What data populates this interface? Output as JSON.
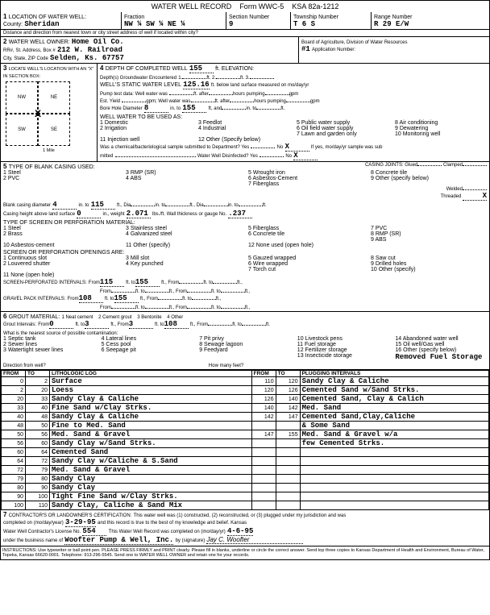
{
  "header": {
    "title": "WATER WELL RECORD",
    "form": "Form WWC-5",
    "ksa": "KSA 82a-1212"
  },
  "section1": {
    "title": "LOCATION OF WATER WELL:",
    "county_label": "County:",
    "county": "Sheridan",
    "fraction_label": "Fraction",
    "fraction": "NW ¼ SW ¼ NE ¼",
    "section_label": "Section Number",
    "section": "9",
    "township_label": "Township Number",
    "township": "T 6 S",
    "range_label": "Range Number",
    "range": "R 29 E/W",
    "distance": "Distance and direction from nearest town or city street address of well if located within city?"
  },
  "section2": {
    "title": "WATER WELL OWNER:",
    "name": "Home Oil Co.",
    "addr_label": "RR#, St. Address, Box #",
    "addr": "212 W. Railroad",
    "city_label": "City, State, ZIP Code",
    "city": "Selden, Ks. 67757",
    "board": "Board of Agriculture, Division of Water Resources",
    "app_num": "#1",
    "app_label": "Application Number:"
  },
  "section3": {
    "title": "LOCATE WELL'S LOCATION WITH AN \"X\" IN SECTION BOX:",
    "nw": "NW",
    "ne": "NE",
    "sw": "SW",
    "se": "SE",
    "mile": "1 Mile"
  },
  "section4": {
    "title": "DEPTH OF COMPLETED WELL",
    "depth": "155",
    "elev_label": "ft. ELEVATION:",
    "depths_label": "Depth(s) Groundwater Encountered",
    "static_label": "WELL'S STATIC WATER LEVEL",
    "static": "125.16",
    "static_suffix": "ft. below land surface measured on mo/day/yr",
    "pump_label": "Pump test data: Well water was",
    "est_label": "Est. Yield",
    "bore_label": "Bore Hole Diameter",
    "bore_dia": "8",
    "bore_to": "155",
    "use_label": "WELL WATER TO BE USED AS:",
    "uses": [
      "1 Domestic",
      "2 Irrigation",
      "3 Feedlot",
      "4 Industrial",
      "5 Public water supply",
      "6 Oil field water supply",
      "7 Lawn and garden only",
      "8 Air conditioning",
      "9 Dewatering",
      "10 Monitoring well",
      "11 Injection well",
      "12 Other (Specify below)"
    ],
    "chem_label": "Was a chemical/bacteriological sample submitted to Department? Yes",
    "chem_no": "No",
    "chem_x": "X",
    "chem_suffix": "If yes, mo/day/yr sample was sub",
    "mitted": "mitted",
    "disinfect": "Water Well Disinfected? Yes",
    "disinfect_no": "No",
    "disinfect_x": "X"
  },
  "section5": {
    "title": "TYPE OF BLANK CASING USED:",
    "casing_types": [
      "1 Steel",
      "2 PVC",
      "3 RMP (SR)",
      "4 ABS",
      "5 Wrought iron",
      "6 Asbestos-Cement",
      "7 Fiberglass",
      "8 Concrete tile",
      "9 Other (specify below)"
    ],
    "joints_label": "CASING JOINTS: Glued",
    "clamped": "Clamped",
    "welded": "Welded",
    "threaded": "Threaded",
    "threaded_x": "X",
    "blank_dia_label": "Blank casing diameter",
    "blank_dia": "4",
    "blank_to": "115",
    "casing_height_label": "Casing height above land surface",
    "casing_height": "0",
    "weight": "2.071",
    "thickness": ".237",
    "screen_label": "TYPE OF SCREEN OR PERFORATION MATERIAL:",
    "screen_types": [
      "1 Steel",
      "2 Brass",
      "3 Stainless steel",
      "4 Galvanized steel",
      "5 Fiberglass",
      "6 Concrete tile",
      "7 PVC",
      "8 RMP (SR)",
      "9 ABS",
      "10 Asbestos-cement",
      "11 Other (specify)",
      "12 None used (open hole)"
    ],
    "openings_label": "SCREEN OR PERFORATION OPENINGS ARE:",
    "openings": [
      "1 Continuous slot",
      "2 Louvered shutter",
      "3 Mill slot",
      "4 Key punched",
      "5 Gauzed wrapped",
      "6 Wire wrapped",
      "7 Torch cut",
      "8 Saw cut",
      "9 Drilled holes",
      "10 Other (specify)",
      "11 None (open hole)"
    ],
    "perf_label": "SCREEN-PERFORATED INTERVALS:",
    "perf_from": "115",
    "perf_to": "155",
    "gravel_label": "GRAVEL PACK INTERVALS:",
    "gravel_from": "108",
    "gravel_to": "155"
  },
  "section6": {
    "title": "GROUT MATERIAL:",
    "types": [
      "1 Neat cement",
      "2 Cement grout",
      "3 Bentonite",
      "4 Other"
    ],
    "intervals_label": "Grout Intervals:",
    "g1_from": "0",
    "g1_to": "3",
    "g2_from": "3",
    "g2_to": "108",
    "contam_label": "What is the nearest source of possible contamination:",
    "contam": [
      "1 Septic tank",
      "2 Sewer lines",
      "3 Watertight sewer lines",
      "4 Lateral lines",
      "5 Cess pool",
      "6 Seepage pit",
      "7 Pit privy",
      "8 Sewage lagoon",
      "9 Feedyard",
      "10 Livestock pens",
      "11 Fuel storage",
      "12 Fertilizer storage",
      "13 Insecticide storage",
      "14 Abandoned water well",
      "15 Oil well/Gas well",
      "16 Other (specify below)"
    ],
    "removed": "Removed Fuel Storage",
    "direction": "Direction from well?",
    "howmany": "How many feet?"
  },
  "log": {
    "headers": [
      "FROM",
      "TO",
      "LITHOLOGIC LOG",
      "FROM",
      "TO",
      "PLUGGING INTERVALS"
    ],
    "rows": [
      [
        "0",
        "2",
        "Surface",
        "110",
        "120",
        "Sandy Clay & Caliche"
      ],
      [
        "2",
        "20",
        "Loess",
        "120",
        "126",
        "Cemented Sand w/Sand Strks."
      ],
      [
        "20",
        "33",
        "Sandy Clay & Caliche",
        "126",
        "140",
        "Cemented Sand, Clay & Calich"
      ],
      [
        "33",
        "40",
        "Fine Sand w/Clay Strks.",
        "140",
        "142",
        "Med. Sand"
      ],
      [
        "40",
        "48",
        "Sandy Clay & Caliche",
        "142",
        "147",
        "Cemented Sand,Clay,Caliche"
      ],
      [
        "48",
        "50",
        "Fine to Med. Sand",
        "",
        "",
        "& Some Sand"
      ],
      [
        "50",
        "56",
        "Med. Sand & Gravel",
        "147",
        "155",
        "Med. Sand & Gravel w/a"
      ],
      [
        "56",
        "60",
        "Sandy Clay w/Sand Strks.",
        "",
        "",
        "few Cemented Strks."
      ],
      [
        "60",
        "64",
        "Cemented Sand",
        "",
        "",
        ""
      ],
      [
        "64",
        "72",
        "Sandy Clay w/Caliche & S.Sand",
        "",
        "",
        ""
      ],
      [
        "72",
        "79",
        "Med. Sand & Gravel",
        "",
        "",
        ""
      ],
      [
        "79",
        "80",
        "Sandy Clay",
        "",
        "",
        ""
      ],
      [
        "80",
        "90",
        "Sandy Clay",
        "",
        "",
        ""
      ],
      [
        "90",
        "100",
        "Tight Fine Sand w/Clay Strks.",
        "",
        "",
        ""
      ],
      [
        "100",
        "110",
        "Sandy Clay, Caliche & Sand Mix",
        "",
        "",
        ""
      ]
    ]
  },
  "section7": {
    "title": "CONTRACTOR'S OR LANDOWNER'S CERTIFICATION:",
    "cert": "This water well was (1) constructed, (2) reconstructed, or (3) plugged under my jurisdiction and was",
    "completed_label": "completed on (mo/day/year)",
    "completed": "3-29-95",
    "cert2": "and this record is true to the best of my knowledge and belief. Kansas",
    "license_label": "Water Well Contractor's License No.",
    "license": "554",
    "record_label": "This Water Well Record was completed on (mo/day/yr)",
    "record_date": "4-6-95",
    "business_label": "under the business name of",
    "business": "Woofter Pump & Well, Inc.",
    "signature": "by (signature)",
    "instructions": "INSTRUCTIONS: Use typewriter or ball point pen. PLEASE PRESS FIRMLY and PRINT clearly. Please fill in blanks, underline or circle the correct answer. Send top three copies to Kansas Department of Health and Environment, Bureau of Water, Topeka, Kansas 66620-0001. Telephone: 913-296-5545. Send one to WATER WELL OWNER and retain one for your records."
  }
}
